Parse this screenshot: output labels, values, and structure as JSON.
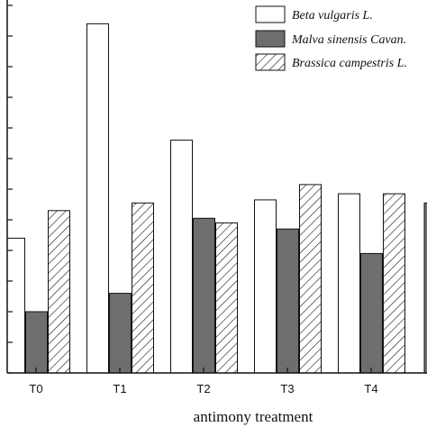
{
  "chart_data": {
    "type": "bar",
    "xlabel": "antimony treatment",
    "ylabel": "",
    "categories": [
      "T0",
      "T1",
      "T2",
      "T3",
      "T4"
    ],
    "ylim": [
      0,
      12
    ],
    "yticks": [
      0,
      1,
      2,
      3,
      4,
      5,
      6,
      7,
      8,
      9,
      10,
      11,
      12
    ],
    "grid": false,
    "legend_position": "top-right",
    "series": [
      {
        "name": "Beta vulgaris L.",
        "fill": "white",
        "values": [
          4.4,
          11.4,
          7.6,
          5.65,
          5.85
        ]
      },
      {
        "name": "Malva sinensis Cavan.",
        "fill": "gray",
        "values": [
          2.0,
          2.6,
          5.05,
          4.7,
          3.9
        ]
      },
      {
        "name": "Brassica campestris L.",
        "fill": "hatched",
        "values": [
          5.3,
          5.55,
          4.9,
          6.15,
          5.85
        ]
      }
    ],
    "truncated_extra_bar": {
      "fill": "gray",
      "value": 5.55
    }
  },
  "colors": {
    "axis": "#111111",
    "gray_fill": "#6e6e6e",
    "white_fill": "#ffffff"
  }
}
